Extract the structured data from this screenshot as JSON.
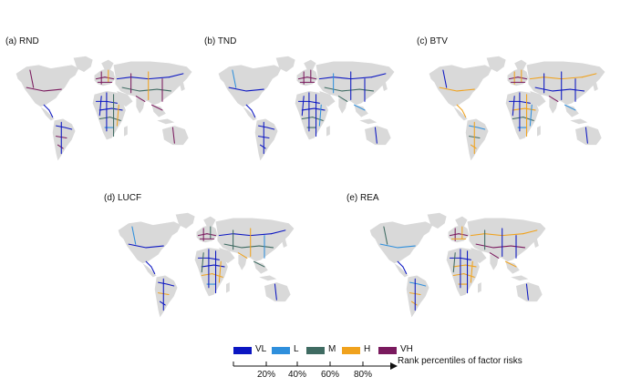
{
  "panels": [
    {
      "id": "rnd",
      "label": "(a) RND"
    },
    {
      "id": "tnd",
      "label": "(b) TND"
    },
    {
      "id": "btv",
      "label": "(c) BTV"
    },
    {
      "id": "lucf",
      "label": "(d) LUCF"
    },
    {
      "id": "rea",
      "label": "(e) REA"
    }
  ],
  "legend": {
    "items": [
      {
        "code": "VL",
        "color": "#0b16c2"
      },
      {
        "code": "L",
        "color": "#2f8fdc"
      },
      {
        "code": "M",
        "color": "#3f6b62"
      },
      {
        "code": "H",
        "color": "#f0a21d"
      },
      {
        "code": "VH",
        "color": "#7a1a5e"
      }
    ],
    "ticks": [
      "20%",
      "40%",
      "60%",
      "80%"
    ],
    "axis_title": "Rank percentiles of factor risks"
  },
  "colors": {
    "land": "#d9d9d9"
  }
}
